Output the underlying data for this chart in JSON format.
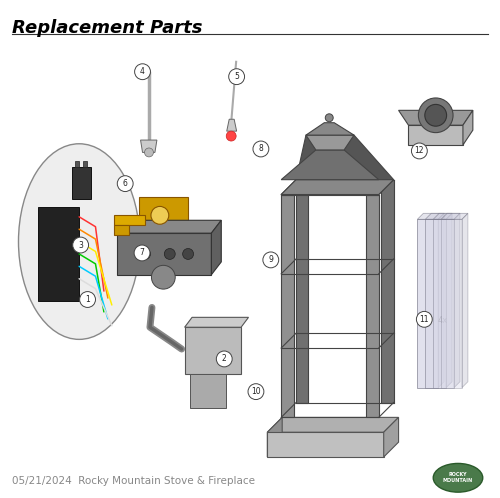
{
  "title": "Replacement Parts",
  "footer_text": "05/21/2024  Rocky Mountain Stove & Fireplace",
  "bg_color": "#ffffff",
  "title_color": "#000000",
  "title_fontsize": 13,
  "footer_fontsize": 7.5,
  "footer_color": "#888888"
}
